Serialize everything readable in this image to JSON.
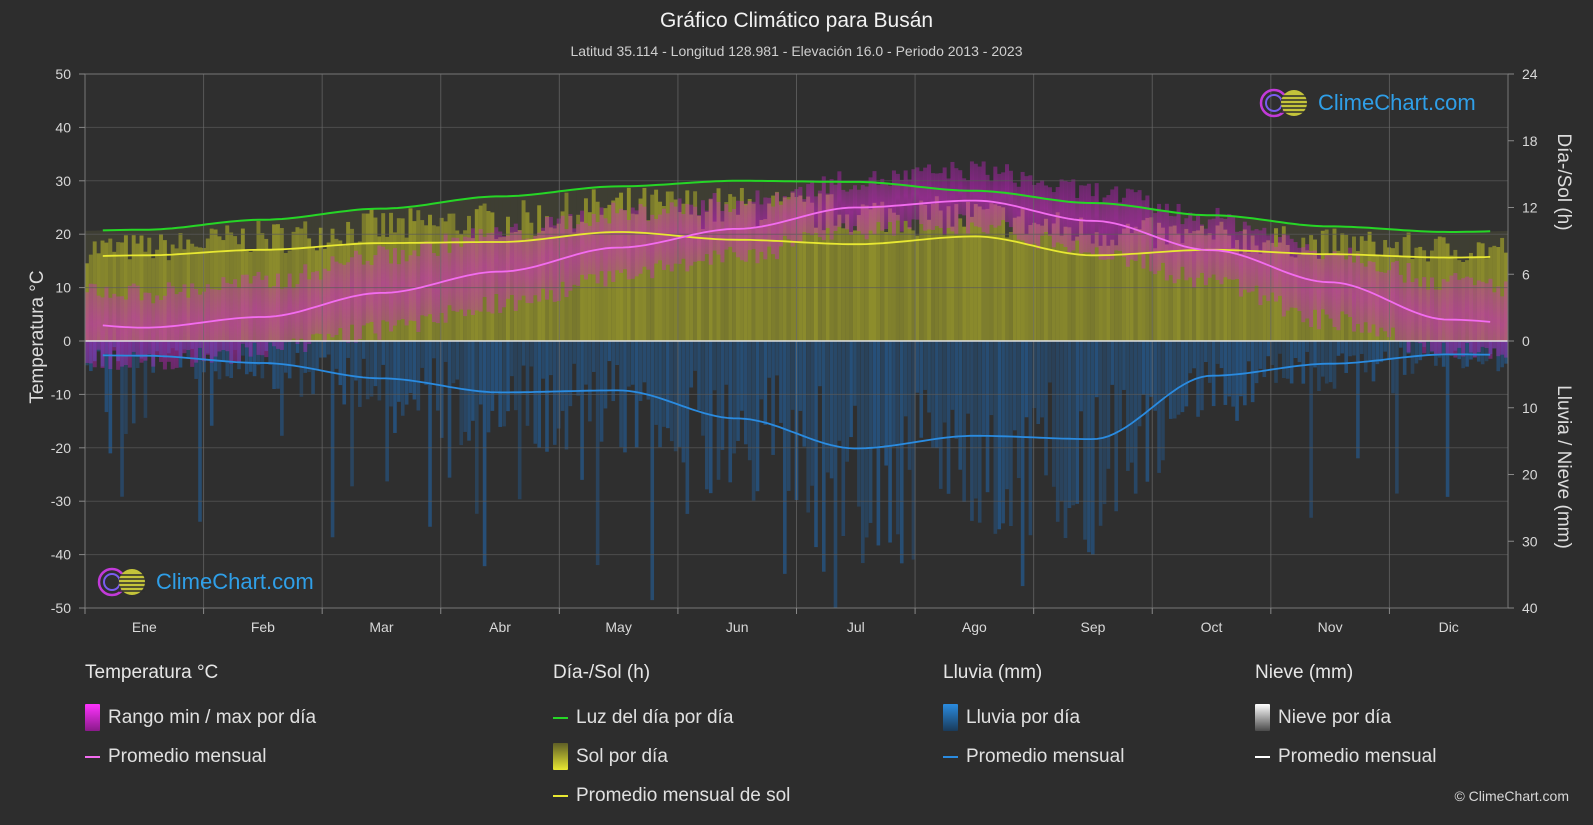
{
  "title": "Gráfico Climático para Busán",
  "subtitle": "Latitud 35.114 - Longitud 128.981 - Elevación 16.0 - Periodo 2013 - 2023",
  "axes": {
    "left_title": "Temperatura °C",
    "right_top_title": "Día-/Sol (h)",
    "right_bottom_title": "Lluvia / Nieve (mm)",
    "left_ticks": [
      "50",
      "40",
      "30",
      "20",
      "10",
      "0",
      "-10",
      "-20",
      "-30",
      "-40",
      "-50"
    ],
    "right_top_ticks": [
      "24",
      "18",
      "12",
      "6",
      "0"
    ],
    "right_bottom_ticks": [
      "10",
      "20",
      "30",
      "40"
    ]
  },
  "logo_text": "ClimeChart.com",
  "copyright": "© ClimeChart.com",
  "colors": {
    "background": "#2d2d2d",
    "temp_range": "#d81fd8",
    "temp_avg": "#f36cf0",
    "daylight": "#26d626",
    "sun_fill": "#a8a82a",
    "sun_avg": "#e8e832",
    "rain": "#1f6fbf",
    "rain_avg": "#2a8be0",
    "snow_avg": "#ffffff",
    "grid": "#5a5a5a"
  },
  "legend": {
    "temp": {
      "heading": "Temperatura °C",
      "range_label": "Rango min / max por día",
      "avg_label": "Promedio mensual"
    },
    "sun": {
      "heading": "Día-/Sol (h)",
      "daylight_label": "Luz del día por día",
      "sun_label": "Sol por día",
      "avg_label": "Promedio mensual de sol"
    },
    "rain": {
      "heading": "Lluvia (mm)",
      "rain_label": "Lluvia por día",
      "avg_label": "Promedio mensual"
    },
    "snow": {
      "heading": "Nieve (mm)",
      "snow_label": "Nieve por día",
      "avg_label": "Promedio mensual"
    }
  },
  "chart_data": {
    "type": "line",
    "title": "Gráfico Climático para Busán",
    "categories": [
      "Ene",
      "Feb",
      "Mar",
      "Abr",
      "May",
      "Jun",
      "Jul",
      "Ago",
      "Sep",
      "Oct",
      "Nov",
      "Dic"
    ],
    "temperature_axis": {
      "label": "Temperatura °C",
      "range": [
        -50,
        50
      ]
    },
    "sun_axis": {
      "label": "Día-/Sol (h)",
      "range": [
        0,
        24
      ]
    },
    "precip_axis": {
      "label": "Lluvia / Nieve (mm)",
      "range": [
        0,
        40
      ]
    },
    "grid": true,
    "series": [
      {
        "name": "Promedio mensual",
        "group": "Temperatura °C",
        "axis": "temperature",
        "values": [
          2.5,
          4.5,
          9,
          13,
          17.5,
          21,
          25,
          26.3,
          22.5,
          17,
          11,
          4
        ]
      },
      {
        "name": "Rango min / max por día (min)",
        "group": "Temperatura °C",
        "axis": "temperature",
        "values": [
          -2,
          0,
          4,
          9,
          14,
          18,
          23,
          24,
          19,
          13,
          6,
          0
        ]
      },
      {
        "name": "Rango min / max por día (max)",
        "group": "Temperatura °C",
        "axis": "temperature",
        "values": [
          7,
          9,
          14,
          18,
          22,
          24,
          28,
          30,
          26,
          21,
          15,
          9
        ]
      },
      {
        "name": "Luz del día por día",
        "group": "Día-/Sol (h)",
        "axis": "sun",
        "values": [
          10.0,
          10.9,
          11.9,
          13.0,
          13.9,
          14.4,
          14.3,
          13.5,
          12.4,
          11.3,
          10.3,
          9.8
        ]
      },
      {
        "name": "Sol por día",
        "group": "Día-/Sol (h)",
        "axis": "sun",
        "values": [
          9.0,
          10.0,
          11.0,
          11.6,
          12.9,
          12.9,
          12.3,
          12.0,
          10.6,
          10.0,
          9.4,
          8.9
        ]
      },
      {
        "name": "Promedio mensual de sol",
        "group": "Día-/Sol (h)",
        "axis": "sun",
        "values": [
          7.7,
          8.2,
          8.8,
          8.9,
          9.8,
          9.1,
          8.7,
          9.4,
          7.7,
          8.2,
          7.8,
          7.5
        ]
      },
      {
        "name": "Promedio mensual",
        "group": "Lluvia (mm)",
        "axis": "precip",
        "values": [
          2.2,
          3.3,
          5.6,
          7.7,
          7.4,
          11.6,
          16.1,
          14.2,
          14.7,
          5.2,
          3.4,
          2.0
        ]
      },
      {
        "name": "Promedio mensual",
        "group": "Nieve (mm)",
        "axis": "precip",
        "values": [
          0,
          0,
          0,
          0,
          0,
          0,
          0,
          0,
          0,
          0,
          0,
          0
        ]
      }
    ]
  }
}
